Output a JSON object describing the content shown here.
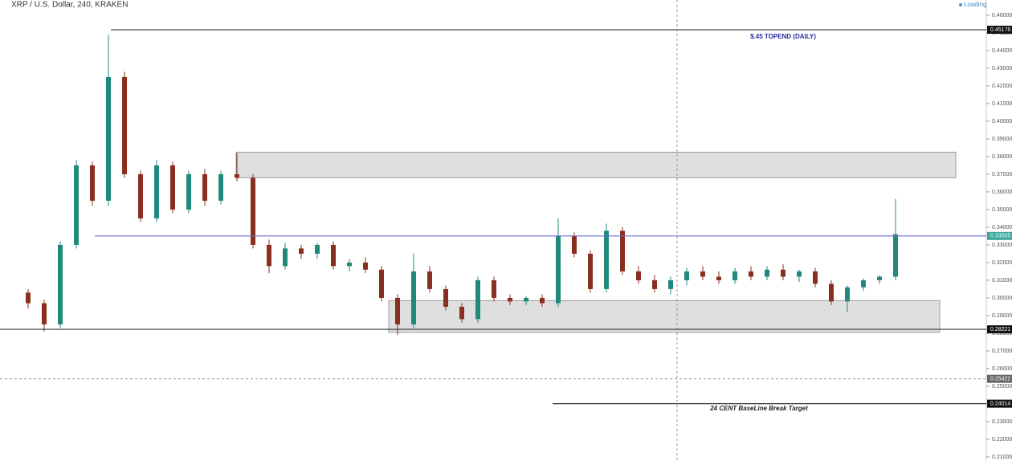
{
  "chart_data": {
    "type": "candlestick",
    "title": "XRP / U.S. Dollar, 240, KRAKEN",
    "status": "Loading",
    "annotations": [
      "$.45 TOPEND (DAILY)",
      "24 CENT BaseLine Break Target"
    ],
    "up_color": "#1f8a7c",
    "down_color": "#8a2f1f",
    "open": [
      0.303,
      0.297,
      0.285,
      0.33,
      0.375,
      0.355,
      0.425,
      0.37,
      0.345,
      0.375,
      0.35,
      0.37,
      0.355,
      0.37,
      0.368,
      0.33,
      0.318,
      0.328,
      0.325,
      0.33,
      0.318,
      0.32,
      0.316,
      0.3,
      0.285,
      0.315,
      0.305,
      0.295,
      0.288,
      0.31,
      0.3,
      0.298,
      0.3,
      0.297,
      0.335,
      0.325,
      0.305,
      0.338,
      0.315,
      0.31,
      0.305,
      0.31,
      0.315,
      0.312,
      0.31,
      0.315,
      0.312,
      0.316,
      0.312,
      0.315,
      0.308,
      0.298,
      0.306,
      0.31,
      0.312
    ],
    "high": [
      0.305,
      0.299,
      0.332,
      0.378,
      0.377,
      0.449,
      0.428,
      0.372,
      0.378,
      0.377,
      0.372,
      0.373,
      0.372,
      0.382,
      0.37,
      0.333,
      0.331,
      0.33,
      0.331,
      0.332,
      0.322,
      0.323,
      0.318,
      0.302,
      0.325,
      0.318,
      0.307,
      0.297,
      0.312,
      0.312,
      0.302,
      0.301,
      0.302,
      0.345,
      0.337,
      0.327,
      0.342,
      0.34,
      0.318,
      0.313,
      0.312,
      0.317,
      0.318,
      0.315,
      0.317,
      0.318,
      0.318,
      0.319,
      0.316,
      0.317,
      0.31,
      0.307,
      0.311,
      0.313,
      0.356
    ],
    "low": [
      0.294,
      0.281,
      0.283,
      0.328,
      0.352,
      0.352,
      0.368,
      0.343,
      0.343,
      0.348,
      0.348,
      0.352,
      0.353,
      0.366,
      0.328,
      0.314,
      0.316,
      0.322,
      0.322,
      0.316,
      0.315,
      0.314,
      0.298,
      0.279,
      0.283,
      0.303,
      0.293,
      0.286,
      0.286,
      0.298,
      0.296,
      0.296,
      0.295,
      0.295,
      0.323,
      0.303,
      0.303,
      0.313,
      0.308,
      0.303,
      0.302,
      0.307,
      0.31,
      0.308,
      0.308,
      0.31,
      0.31,
      0.31,
      0.309,
      0.306,
      0.296,
      0.292,
      0.304,
      0.308,
      0.31
    ],
    "close": [
      0.297,
      0.285,
      0.33,
      0.375,
      0.355,
      0.425,
      0.37,
      0.345,
      0.375,
      0.35,
      0.37,
      0.355,
      0.37,
      0.368,
      0.33,
      0.318,
      0.328,
      0.325,
      0.33,
      0.318,
      0.32,
      0.316,
      0.3,
      0.285,
      0.315,
      0.305,
      0.295,
      0.288,
      0.31,
      0.3,
      0.298,
      0.3,
      0.297,
      0.335,
      0.325,
      0.305,
      0.338,
      0.315,
      0.31,
      0.305,
      0.31,
      0.315,
      0.312,
      0.31,
      0.315,
      0.312,
      0.316,
      0.312,
      0.315,
      0.308,
      0.298,
      0.306,
      0.31,
      0.312,
      0.336
    ],
    "levels": [
      0.45176,
      0.33505,
      0.28221,
      0.25422,
      0.24014
    ],
    "zones": [
      {
        "top": 0.3825,
        "bottom": 0.368
      },
      {
        "top": 0.2985,
        "bottom": 0.2805
      }
    ],
    "ylim": [
      0.2077,
      0.4686
    ],
    "yticks": [
      {
        "value": 0.21,
        "label": "0.21000"
      },
      {
        "value": 0.22,
        "label": "0.22000"
      },
      {
        "value": 0.23,
        "label": "0.23000"
      },
      {
        "value": 0.24,
        "label": "0.24000"
      },
      {
        "value": 0.25,
        "label": "0.25000"
      },
      {
        "value": 0.26,
        "label": "0.26000"
      },
      {
        "value": 0.27,
        "label": "0.27000"
      },
      {
        "value": 0.28,
        "label": "0.28000"
      },
      {
        "value": 0.29,
        "label": "0.29000"
      },
      {
        "value": 0.3,
        "label": "0.30000"
      },
      {
        "value": 0.31,
        "label": "0.31000"
      },
      {
        "value": 0.32,
        "label": "0.32000"
      },
      {
        "value": 0.33,
        "label": "0.33000"
      },
      {
        "value": 0.34,
        "label": "0.34000"
      },
      {
        "value": 0.35,
        "label": "0.35000"
      },
      {
        "value": 0.36,
        "label": "0.36000"
      },
      {
        "value": 0.37,
        "label": "0.37000"
      },
      {
        "value": 0.38,
        "label": "0.38000"
      },
      {
        "value": 0.39,
        "label": "0.39000"
      },
      {
        "value": 0.4,
        "label": "0.40000"
      },
      {
        "value": 0.41,
        "label": "0.41000"
      },
      {
        "value": 0.42,
        "label": "0.42000"
      },
      {
        "value": 0.43,
        "label": "0.43000"
      },
      {
        "value": 0.44,
        "label": "0.44000"
      },
      {
        "value": 0.45,
        "label": "0.45000"
      },
      {
        "value": 0.46,
        "label": "0.46000"
      }
    ]
  }
}
